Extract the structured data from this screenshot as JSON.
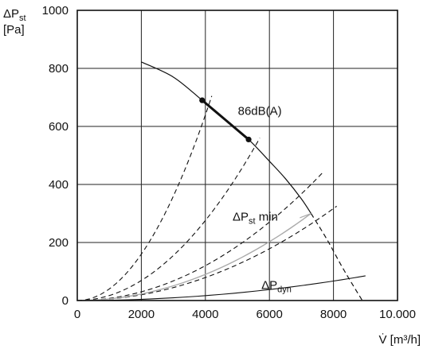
{
  "chart_data": {
    "type": "line",
    "xlabel": "V̇ [m³/h]",
    "ylabel": {
      "main": "ΔP",
      "sub": "st",
      "unit": "[Pa]"
    },
    "xlim": [
      0,
      10000
    ],
    "ylim": [
      0,
      1000
    ],
    "xticks": [
      0,
      2000,
      4000,
      6000,
      8000,
      10000
    ],
    "xtick_labels": [
      "0",
      "2000",
      "4000",
      "6000",
      "8000",
      "10.000"
    ],
    "yticks": [
      0,
      200,
      400,
      600,
      800,
      1000
    ],
    "ytick_labels": [
      "0",
      "200",
      "400",
      "600",
      "800",
      "1000"
    ],
    "grid": true,
    "fan_curve": {
      "x": [
        2000,
        3000,
        3900,
        4600,
        5350,
        6000,
        6500,
        7000,
        7300
      ],
      "y": [
        822,
        770,
        690,
        625,
        555,
        480,
        420,
        350,
        300
      ],
      "extension": {
        "x": [
          7300,
          7800,
          8300,
          8900
        ],
        "y": [
          300,
          210,
          110,
          0
        ]
      }
    },
    "highlight_segment": {
      "label": "86dB(A)",
      "x": [
        3900,
        4600,
        5350
      ],
      "y": [
        690,
        625,
        555
      ]
    },
    "markers": [
      {
        "x": 3900,
        "y": 690
      },
      {
        "x": 5350,
        "y": 555
      }
    ],
    "system_curves": [
      {
        "x_end": 4200,
        "y_end": 705
      },
      {
        "x_end": 5700,
        "y_end": 560
      },
      {
        "x_end": 7700,
        "y_end": 445
      },
      {
        "x_end": 8100,
        "y_end": 325
      }
    ],
    "min_curve": {
      "label": {
        "main": "ΔP",
        "sub": "st",
        "suffix": " min"
      },
      "x_end": 7300,
      "y_end": 300
    },
    "dyn_curve": {
      "label": {
        "main": "ΔP",
        "sub": "dyn"
      },
      "x_end": 9000,
      "y_end": 85
    },
    "annotations": [
      {
        "text": "86dB(A)",
        "x": 5700,
        "y": 640
      },
      {
        "min_label_x": 4850,
        "min_label_y": 275
      },
      {
        "dyn_label_x": 5750,
        "dyn_label_y": 40
      }
    ],
    "colors": {
      "ink": "#111111",
      "grid": "#222222",
      "min_curve": "#aaaaaa"
    }
  }
}
